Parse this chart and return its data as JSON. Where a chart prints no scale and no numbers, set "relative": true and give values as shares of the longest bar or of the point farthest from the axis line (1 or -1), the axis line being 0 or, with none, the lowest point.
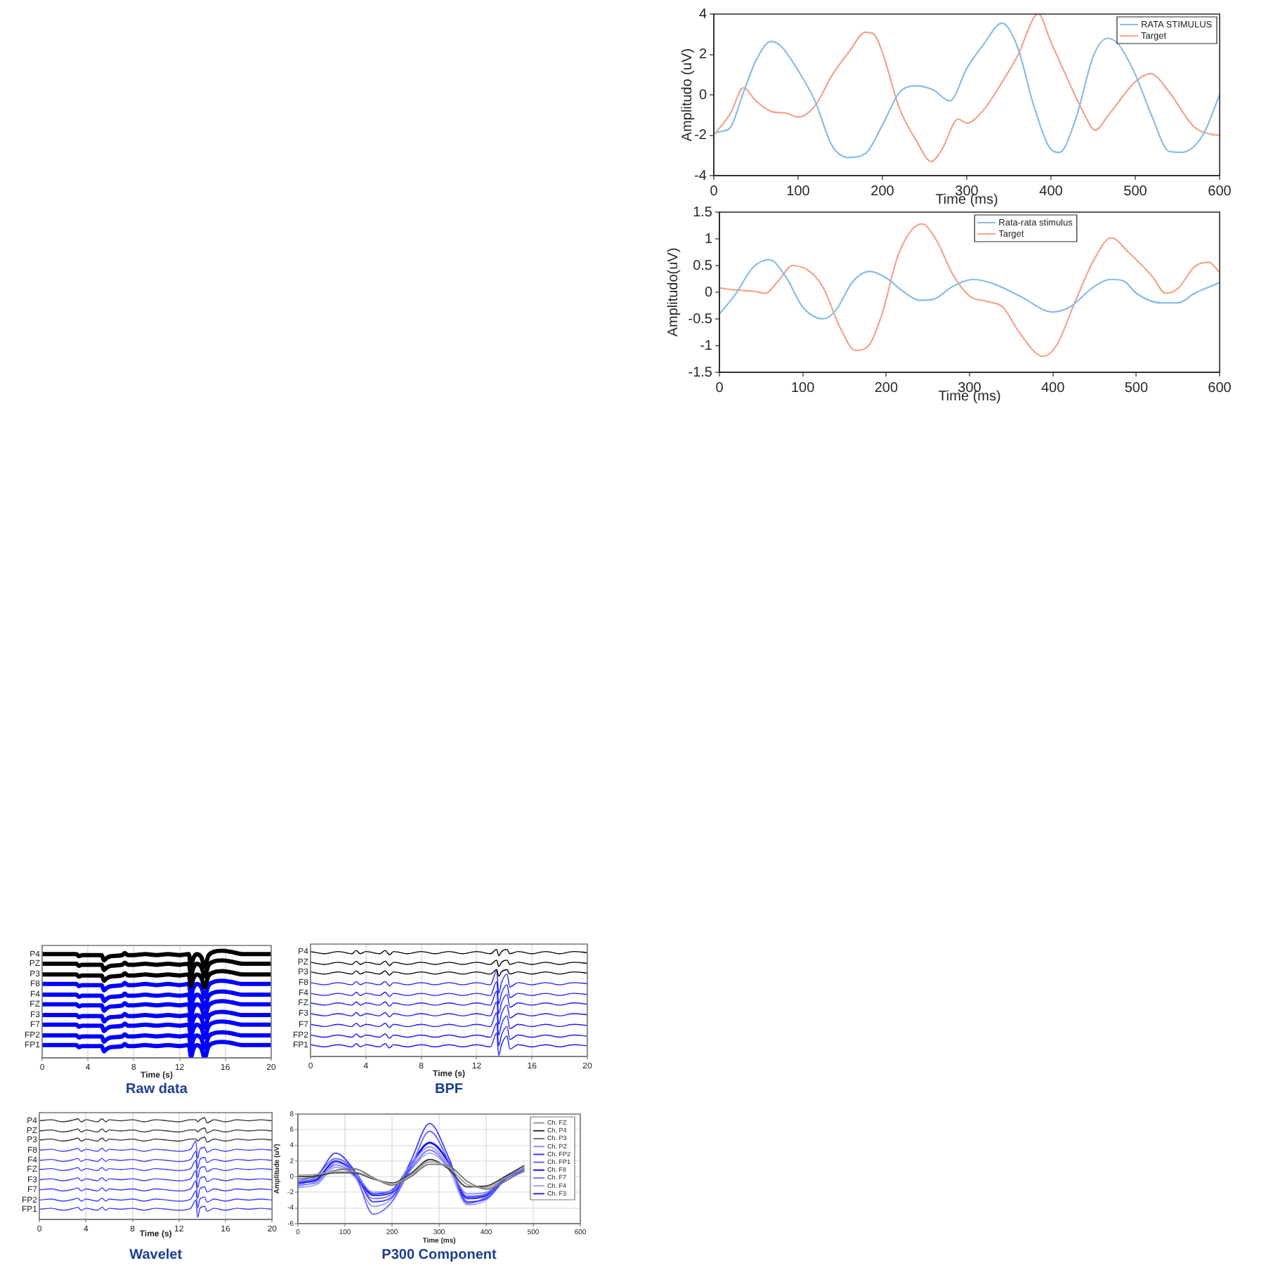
{
  "chart_data": [
    {
      "type": "line",
      "xlabel": "Time (ms)",
      "ylabel": "Amplitudo (uV)",
      "xlim": [
        0,
        600
      ],
      "xticks": [
        0,
        100,
        200,
        300,
        400,
        500,
        600
      ],
      "ylim": [
        -4,
        4
      ],
      "yticks": [
        -4,
        -2,
        0,
        2,
        4
      ],
      "legend": "top right",
      "series": [
        {
          "name": "RATA STIMULUS",
          "color": "#86bde8",
          "x": [
            0,
            10,
            20,
            35,
            50,
            68,
            80,
            100,
            120,
            140,
            160,
            180,
            200,
            220,
            240,
            260,
            280,
            300,
            320,
            342,
            360,
            380,
            400,
            410,
            430,
            450,
            467,
            480,
            500,
            520,
            540,
            555,
            580,
            600
          ],
          "values": [
            -1.9,
            -1.8,
            -1.6,
            0.1,
            1.7,
            2.65,
            2.4,
            1.2,
            -0.3,
            -2.5,
            -3.1,
            -2.9,
            -1.5,
            0.1,
            0.45,
            0.25,
            -0.3,
            1.3,
            2.5,
            3.55,
            2.4,
            -0.6,
            -2.7,
            -2.85,
            -1.1,
            1.9,
            2.8,
            2.5,
            1,
            -1.1,
            -2.8,
            -2.85,
            -2,
            0
          ]
        },
        {
          "name": "Target",
          "color": "#f2a48a",
          "x": [
            0,
            20,
            35,
            50,
            70,
            85,
            100,
            120,
            140,
            160,
            180,
            190,
            200,
            220,
            240,
            258,
            270,
            290,
            300,
            320,
            340,
            360,
            385,
            400,
            420,
            440,
            452,
            470,
            500,
            518,
            540,
            570,
            590,
            600
          ],
          "values": [
            -2,
            -0.9,
            0.35,
            -0.3,
            -0.85,
            -0.9,
            -1.1,
            -0.55,
            0.95,
            2.1,
            3.1,
            3,
            2.1,
            -0.65,
            -2.25,
            -3.3,
            -2.75,
            -1.2,
            -1.4,
            -0.75,
            0.5,
            1.9,
            4,
            2.6,
            0.75,
            -1,
            -1.75,
            -0.9,
            0.65,
            1.05,
            0.15,
            -1.6,
            -1.95,
            -2
          ]
        }
      ]
    },
    {
      "type": "line",
      "xlabel": "Time (ms)",
      "ylabel": "Amplitudo(uV)",
      "xlim": [
        0,
        600
      ],
      "xticks": [
        0,
        100,
        200,
        300,
        400,
        500,
        600
      ],
      "ylim": [
        -1.5,
        1.5
      ],
      "yticks": [
        -1.5,
        -1,
        -0.5,
        0,
        0.5,
        1,
        1.5
      ],
      "legend": "top",
      "series": [
        {
          "name": "Rata-rata stimulus",
          "color": "#86bde8",
          "x": [
            0,
            20,
            40,
            60,
            80,
            100,
            125,
            140,
            160,
            180,
            200,
            220,
            240,
            255,
            280,
            305,
            330,
            360,
            400,
            420,
            450,
            470,
            485,
            500,
            530,
            550,
            570,
            600
          ],
          "values": [
            -0.41,
            -0.02,
            0.46,
            0.61,
            0.28,
            -0.28,
            -0.5,
            -0.33,
            0.2,
            0.39,
            0.27,
            0.02,
            -0.15,
            -0.14,
            0.11,
            0.24,
            0.15,
            -0.07,
            -0.37,
            -0.28,
            0.11,
            0.24,
            0.21,
            -0.02,
            -0.2,
            -0.2,
            -0.02,
            0.18
          ]
        },
        {
          "name": "Target",
          "color": "#f2a48a",
          "x": [
            0,
            20,
            40,
            55,
            70,
            88,
            110,
            125,
            145,
            163,
            180,
            195,
            215,
            243,
            260,
            280,
            300,
            320,
            340,
            360,
            388,
            405,
            425,
            450,
            470,
            490,
            520,
            535,
            550,
            570,
            587,
            600
          ],
          "values": [
            0.08,
            0.04,
            0.02,
            -0.02,
            0.2,
            0.5,
            0.37,
            0.07,
            -0.67,
            -1.09,
            -0.98,
            -0.41,
            0.72,
            1.28,
            0.98,
            0.33,
            -0.07,
            -0.17,
            -0.28,
            -0.76,
            -1.2,
            -0.98,
            -0.24,
            0.63,
            1.02,
            0.76,
            0.28,
            -0.02,
            0.07,
            0.48,
            0.56,
            0.37
          ]
        }
      ]
    },
    {
      "type": "line",
      "title": "Raw data",
      "xlabel": "Time (s)",
      "xlim": [
        0,
        20
      ],
      "xticks": [
        0,
        4,
        8,
        12,
        16,
        20
      ],
      "relative": true,
      "grid": "x",
      "x": [
        0,
        1,
        2,
        3,
        3.2,
        3.5,
        4.5,
        5.2,
        5.4,
        5.6,
        6,
        7,
        7.2,
        7.5,
        8,
        9,
        10,
        11,
        12,
        12.8,
        13,
        13.2,
        13.5,
        13.9,
        14.2,
        14.5,
        15,
        15.7,
        16.5,
        17.5,
        18.5,
        19.5,
        20
      ],
      "series": [
        {
          "name": "P4",
          "color": "#000000",
          "values": [
            0.97,
            0.97,
            0.97,
            0.97,
            0.95,
            0.96,
            0.96,
            0.96,
            0.91,
            0.93,
            0.95,
            0.96,
            0.98,
            0.96,
            0.96,
            0.97,
            0.96,
            0.97,
            0.96,
            0.97,
            0.86,
            0.93,
            0.97,
            0.94,
            0.85,
            0.95,
            0.99,
            1,
            0.99,
            0.97,
            0.97,
            0.97,
            0.97
          ]
        },
        {
          "name": "PZ",
          "color": "#000000",
          "values": [
            0.88,
            0.88,
            0.88,
            0.88,
            0.86,
            0.87,
            0.87,
            0.87,
            0.82,
            0.84,
            0.86,
            0.87,
            0.89,
            0.87,
            0.87,
            0.88,
            0.87,
            0.88,
            0.87,
            0.88,
            0.77,
            0.84,
            0.88,
            0.85,
            0.76,
            0.86,
            0.9,
            0.91,
            0.9,
            0.88,
            0.88,
            0.88,
            0.88
          ]
        },
        {
          "name": "P3",
          "color": "#000000",
          "values": [
            0.78,
            0.78,
            0.78,
            0.78,
            0.76,
            0.77,
            0.77,
            0.77,
            0.72,
            0.74,
            0.76,
            0.77,
            0.79,
            0.77,
            0.77,
            0.78,
            0.77,
            0.78,
            0.77,
            0.78,
            0.67,
            0.74,
            0.78,
            0.75,
            0.66,
            0.76,
            0.8,
            0.81,
            0.8,
            0.78,
            0.78,
            0.78,
            0.78
          ]
        },
        {
          "name": "F8",
          "color": "#0000ff",
          "values": [
            0.69,
            0.69,
            0.69,
            0.69,
            0.67,
            0.68,
            0.68,
            0.68,
            0.63,
            0.65,
            0.67,
            0.68,
            0.7,
            0.68,
            0.68,
            0.69,
            0.68,
            0.69,
            0.68,
            0.69,
            0.58,
            0.65,
            0.69,
            0.66,
            0.57,
            0.67,
            0.71,
            0.72,
            0.71,
            0.69,
            0.69,
            0.69,
            0.69
          ]
        },
        {
          "name": "F4",
          "color": "#0000ff",
          "values": [
            0.59,
            0.59,
            0.59,
            0.59,
            0.57,
            0.58,
            0.58,
            0.58,
            0.53,
            0.55,
            0.57,
            0.58,
            0.6,
            0.58,
            0.58,
            0.59,
            0.58,
            0.59,
            0.58,
            0.59,
            0.48,
            0.55,
            0.59,
            0.56,
            0.47,
            0.57,
            0.61,
            0.62,
            0.61,
            0.59,
            0.59,
            0.59,
            0.59
          ]
        },
        {
          "name": "FZ",
          "color": "#0000ff",
          "values": [
            0.5,
            0.5,
            0.5,
            0.5,
            0.48,
            0.49,
            0.49,
            0.49,
            0.44,
            0.46,
            0.48,
            0.49,
            0.51,
            0.49,
            0.49,
            0.5,
            0.49,
            0.5,
            0.49,
            0.5,
            0.39,
            0.46,
            0.5,
            0.47,
            0.38,
            0.48,
            0.52,
            0.53,
            0.52,
            0.5,
            0.5,
            0.5,
            0.5
          ]
        },
        {
          "name": "F3",
          "color": "#0000ff",
          "values": [
            0.4,
            0.4,
            0.4,
            0.4,
            0.38,
            0.39,
            0.39,
            0.39,
            0.34,
            0.36,
            0.38,
            0.39,
            0.41,
            0.39,
            0.39,
            0.4,
            0.39,
            0.4,
            0.39,
            0.4,
            0.29,
            0.36,
            0.4,
            0.37,
            0.28,
            0.38,
            0.42,
            0.43,
            0.42,
            0.4,
            0.4,
            0.4,
            0.4
          ]
        },
        {
          "name": "F7",
          "color": "#0000ff",
          "values": [
            0.31,
            0.31,
            0.31,
            0.31,
            0.29,
            0.3,
            0.3,
            0.3,
            0.25,
            0.27,
            0.29,
            0.3,
            0.32,
            0.3,
            0.3,
            0.31,
            0.3,
            0.31,
            0.3,
            0.31,
            0.2,
            0.27,
            0.31,
            0.28,
            0.19,
            0.29,
            0.33,
            0.34,
            0.33,
            0.31,
            0.31,
            0.31,
            0.31
          ]
        },
        {
          "name": "FP2",
          "color": "#0000ff",
          "values": [
            0.21,
            0.21,
            0.21,
            0.21,
            0.19,
            0.2,
            0.2,
            0.2,
            0.15,
            0.17,
            0.19,
            0.2,
            0.22,
            0.2,
            0.2,
            0.21,
            0.2,
            0.21,
            0.2,
            0.21,
            0.1,
            0.17,
            0.21,
            0.18,
            0.09,
            0.19,
            0.23,
            0.24,
            0.23,
            0.21,
            0.21,
            0.21,
            0.21
          ]
        },
        {
          "name": "FP1",
          "color": "#0000ff",
          "values": [
            0.12,
            0.12,
            0.12,
            0.12,
            0.1,
            0.11,
            0.11,
            0.11,
            0.06,
            0.08,
            0.1,
            0.11,
            0.13,
            0.11,
            0.11,
            0.12,
            0.11,
            0.12,
            0.11,
            0.12,
            0.01,
            0.08,
            0.12,
            0.09,
            0,
            0.1,
            0.14,
            0.15,
            0.14,
            0.12,
            0.12,
            0.12,
            0.12
          ]
        }
      ]
    },
    {
      "type": "line",
      "title": "BPF",
      "xlabel": "Time (s)",
      "xlim": [
        0,
        20
      ],
      "xticks": [
        0,
        4,
        8,
        12,
        16,
        20
      ],
      "relative": true,
      "grid": "x",
      "x": [
        0,
        1,
        2,
        3,
        3.3,
        3.6,
        4,
        5,
        5.4,
        5.7,
        6,
        7,
        8,
        9,
        10,
        11,
        12,
        13,
        13.45,
        13.6,
        13.8,
        14.2,
        14.4,
        15,
        16,
        17,
        18,
        19,
        20
      ],
      "series": [
        {
          "name": "P4",
          "color": "#000000",
          "values": [
            0.98,
            0.96,
            0.98,
            0.96,
            0.99,
            0.96,
            0.98,
            0.96,
            0.99,
            0.95,
            0.98,
            0.96,
            0.98,
            0.96,
            0.98,
            0.96,
            0.98,
            0.96,
            1,
            0.94,
            0.98,
            1,
            0.96,
            0.98,
            0.96,
            0.98,
            0.96,
            0.98,
            0.97
          ]
        },
        {
          "name": "PZ",
          "color": "#000000",
          "values": [
            0.88,
            0.86,
            0.88,
            0.86,
            0.89,
            0.86,
            0.88,
            0.86,
            0.89,
            0.85,
            0.88,
            0.86,
            0.88,
            0.86,
            0.88,
            0.86,
            0.88,
            0.86,
            0.9,
            0.84,
            0.88,
            0.9,
            0.86,
            0.88,
            0.86,
            0.88,
            0.86,
            0.88,
            0.87
          ]
        },
        {
          "name": "P3",
          "color": "#000000",
          "values": [
            0.79,
            0.77,
            0.79,
            0.77,
            0.8,
            0.77,
            0.79,
            0.77,
            0.8,
            0.76,
            0.79,
            0.77,
            0.79,
            0.77,
            0.79,
            0.77,
            0.79,
            0.77,
            0.81,
            0.75,
            0.79,
            0.81,
            0.77,
            0.79,
            0.77,
            0.79,
            0.77,
            0.79,
            0.78
          ]
        },
        {
          "name": "F8",
          "color": "#1f1fff",
          "values": [
            0.69,
            0.67,
            0.69,
            0.67,
            0.7,
            0.67,
            0.69,
            0.67,
            0.7,
            0.66,
            0.69,
            0.67,
            0.69,
            0.67,
            0.69,
            0.67,
            0.69,
            0.67,
            0.8,
            0.59,
            0.69,
            0.77,
            0.65,
            0.69,
            0.67,
            0.69,
            0.67,
            0.69,
            0.68
          ]
        },
        {
          "name": "F4",
          "color": "#1f1fff",
          "values": [
            0.59,
            0.57,
            0.59,
            0.57,
            0.6,
            0.57,
            0.59,
            0.57,
            0.6,
            0.56,
            0.59,
            0.57,
            0.59,
            0.57,
            0.59,
            0.57,
            0.59,
            0.57,
            0.7,
            0.49,
            0.59,
            0.67,
            0.55,
            0.59,
            0.57,
            0.59,
            0.57,
            0.59,
            0.58
          ]
        },
        {
          "name": "FZ",
          "color": "#1f1fff",
          "values": [
            0.5,
            0.48,
            0.5,
            0.48,
            0.51,
            0.48,
            0.5,
            0.48,
            0.51,
            0.47,
            0.5,
            0.48,
            0.5,
            0.48,
            0.5,
            0.48,
            0.5,
            0.48,
            0.61,
            0.4,
            0.5,
            0.58,
            0.46,
            0.5,
            0.48,
            0.5,
            0.48,
            0.5,
            0.49
          ]
        },
        {
          "name": "F3",
          "color": "#1f1fff",
          "values": [
            0.4,
            0.38,
            0.4,
            0.38,
            0.41,
            0.38,
            0.4,
            0.38,
            0.41,
            0.37,
            0.4,
            0.38,
            0.4,
            0.38,
            0.4,
            0.38,
            0.4,
            0.38,
            0.51,
            0.3,
            0.4,
            0.48,
            0.36,
            0.4,
            0.38,
            0.4,
            0.38,
            0.4,
            0.39
          ]
        },
        {
          "name": "F7",
          "color": "#1f1fff",
          "values": [
            0.3,
            0.28,
            0.3,
            0.28,
            0.31,
            0.28,
            0.3,
            0.28,
            0.31,
            0.27,
            0.3,
            0.28,
            0.3,
            0.28,
            0.3,
            0.28,
            0.3,
            0.28,
            0.41,
            0.2,
            0.3,
            0.38,
            0.26,
            0.3,
            0.28,
            0.3,
            0.28,
            0.3,
            0.29
          ]
        },
        {
          "name": "FP2",
          "color": "#1f1fff",
          "values": [
            0.2,
            0.18,
            0.2,
            0.18,
            0.21,
            0.18,
            0.2,
            0.18,
            0.21,
            0.17,
            0.2,
            0.18,
            0.2,
            0.18,
            0.2,
            0.18,
            0.2,
            0.18,
            0.31,
            0.1,
            0.2,
            0.28,
            0.16,
            0.2,
            0.18,
            0.2,
            0.18,
            0.2,
            0.19
          ]
        },
        {
          "name": "FP1",
          "color": "#1f1fff",
          "values": [
            0.11,
            0.09,
            0.11,
            0.09,
            0.12,
            0.09,
            0.11,
            0.09,
            0.12,
            0.08,
            0.11,
            0.09,
            0.11,
            0.09,
            0.11,
            0.09,
            0.11,
            0.09,
            0.22,
            0.01,
            0.11,
            0.19,
            0.07,
            0.11,
            0.09,
            0.11,
            0.09,
            0.11,
            0.1
          ]
        }
      ]
    },
    {
      "type": "line",
      "title": "Wavelet",
      "xlabel": "Time (s)",
      "xlim": [
        0,
        20
      ],
      "xticks": [
        0,
        4,
        8,
        12,
        16,
        20
      ],
      "relative": true,
      "grid": "x",
      "x": [
        0,
        1,
        2,
        3,
        3.3,
        3.6,
        4,
        5,
        5.4,
        5.7,
        6,
        7,
        8,
        9,
        10,
        11,
        12,
        13,
        13.45,
        13.6,
        13.8,
        14.2,
        14.4,
        15,
        16,
        17,
        18,
        19,
        20
      ],
      "series": [
        {
          "name": "P4",
          "color": "#333333",
          "values": [
            0.97,
            0.98,
            0.96,
            0.98,
            0.99,
            0.96,
            0.98,
            0.96,
            0.99,
            0.96,
            0.98,
            0.97,
            0.98,
            0.96,
            0.98,
            0.97,
            0.96,
            0.98,
            0.98,
            0.96,
            0.98,
            1,
            0.95,
            0.98,
            0.96,
            0.98,
            0.97,
            0.98,
            0.97
          ]
        },
        {
          "name": "PZ",
          "color": "#333333",
          "values": [
            0.87,
            0.88,
            0.86,
            0.88,
            0.89,
            0.86,
            0.88,
            0.86,
            0.89,
            0.86,
            0.88,
            0.87,
            0.88,
            0.86,
            0.88,
            0.87,
            0.86,
            0.88,
            0.88,
            0.86,
            0.88,
            0.9,
            0.85,
            0.88,
            0.86,
            0.88,
            0.87,
            0.88,
            0.87
          ]
        },
        {
          "name": "P3",
          "color": "#333333",
          "values": [
            0.78,
            0.79,
            0.77,
            0.79,
            0.8,
            0.77,
            0.79,
            0.77,
            0.8,
            0.77,
            0.79,
            0.78,
            0.79,
            0.77,
            0.79,
            0.78,
            0.77,
            0.79,
            0.79,
            0.77,
            0.79,
            0.81,
            0.76,
            0.79,
            0.77,
            0.79,
            0.78,
            0.79,
            0.78
          ]
        },
        {
          "name": "F8",
          "color": "#4040ff",
          "values": [
            0.68,
            0.69,
            0.67,
            0.69,
            0.7,
            0.67,
            0.69,
            0.67,
            0.7,
            0.67,
            0.69,
            0.68,
            0.69,
            0.67,
            0.69,
            0.68,
            0.67,
            0.69,
            0.77,
            0.6,
            0.69,
            0.71,
            0.66,
            0.69,
            0.67,
            0.69,
            0.68,
            0.69,
            0.68
          ]
        },
        {
          "name": "F4",
          "color": "#4040ff",
          "values": [
            0.58,
            0.59,
            0.57,
            0.59,
            0.6,
            0.57,
            0.59,
            0.57,
            0.6,
            0.57,
            0.59,
            0.58,
            0.59,
            0.57,
            0.59,
            0.58,
            0.57,
            0.59,
            0.67,
            0.5,
            0.59,
            0.61,
            0.56,
            0.59,
            0.57,
            0.59,
            0.58,
            0.59,
            0.58
          ]
        },
        {
          "name": "FZ",
          "color": "#4040ff",
          "values": [
            0.49,
            0.5,
            0.48,
            0.5,
            0.51,
            0.48,
            0.5,
            0.48,
            0.51,
            0.48,
            0.5,
            0.49,
            0.5,
            0.48,
            0.5,
            0.49,
            0.48,
            0.5,
            0.58,
            0.41,
            0.5,
            0.52,
            0.47,
            0.5,
            0.48,
            0.5,
            0.49,
            0.5,
            0.49
          ]
        },
        {
          "name": "F3",
          "color": "#4040ff",
          "values": [
            0.39,
            0.4,
            0.38,
            0.4,
            0.41,
            0.38,
            0.4,
            0.38,
            0.41,
            0.38,
            0.4,
            0.39,
            0.4,
            0.38,
            0.4,
            0.39,
            0.38,
            0.4,
            0.48,
            0.31,
            0.4,
            0.42,
            0.37,
            0.4,
            0.38,
            0.4,
            0.39,
            0.4,
            0.39
          ]
        },
        {
          "name": "F7",
          "color": "#4040ff",
          "values": [
            0.29,
            0.3,
            0.28,
            0.3,
            0.31,
            0.28,
            0.3,
            0.28,
            0.31,
            0.28,
            0.3,
            0.29,
            0.3,
            0.28,
            0.3,
            0.29,
            0.28,
            0.3,
            0.38,
            0.21,
            0.3,
            0.32,
            0.27,
            0.3,
            0.28,
            0.3,
            0.29,
            0.3,
            0.29
          ]
        },
        {
          "name": "FP2",
          "color": "#4040ff",
          "values": [
            0.19,
            0.2,
            0.18,
            0.2,
            0.21,
            0.18,
            0.2,
            0.18,
            0.21,
            0.18,
            0.2,
            0.19,
            0.2,
            0.18,
            0.2,
            0.19,
            0.18,
            0.2,
            0.28,
            0.11,
            0.2,
            0.22,
            0.17,
            0.2,
            0.18,
            0.2,
            0.19,
            0.2,
            0.19
          ]
        },
        {
          "name": "FP1",
          "color": "#4040ff",
          "values": [
            0.1,
            0.11,
            0.09,
            0.11,
            0.12,
            0.09,
            0.11,
            0.09,
            0.12,
            0.09,
            0.11,
            0.1,
            0.11,
            0.09,
            0.11,
            0.1,
            0.09,
            0.11,
            0.19,
            0.02,
            0.11,
            0.13,
            0.08,
            0.11,
            0.09,
            0.11,
            0.1,
            0.11,
            0.1
          ]
        }
      ]
    },
    {
      "type": "line",
      "title": "P300 Component",
      "xlabel": "Time (ms)",
      "ylabel": "Amplitude (uV)",
      "xlim": [
        0,
        600
      ],
      "xticks": [
        0,
        100,
        200,
        300,
        400,
        500,
        600
      ],
      "ylim": [
        -6,
        8
      ],
      "yticks": [
        -6,
        -4,
        -2,
        0,
        2,
        4,
        6,
        8
      ],
      "grid": true,
      "legend": "top right",
      "x": [
        0,
        40,
        80,
        120,
        160,
        200,
        240,
        280,
        320,
        360,
        400,
        440,
        480
      ],
      "series": [
        {
          "name": "Ch. FZ",
          "color": "#9a9a9a",
          "values": [
            0.2,
            0.3,
            0.6,
            0.6,
            -0.2,
            -0.9,
            0.2,
            1.9,
            1.2,
            -1,
            -1.4,
            -0.2,
            1.2
          ]
        },
        {
          "name": "Ch. P4",
          "color": "#333333",
          "values": [
            0,
            0.1,
            0.5,
            0.5,
            -0.3,
            -0.8,
            0.4,
            2.2,
            1,
            -1.3,
            -1.2,
            0,
            1.4
          ]
        },
        {
          "name": "Ch. P3",
          "color": "#777777",
          "values": [
            -0.3,
            0,
            0.8,
            1,
            -0.1,
            -1.1,
            0,
            1.6,
            1.4,
            -0.6,
            -1.6,
            -0.6,
            0.8
          ]
        },
        {
          "name": "Ch. PZ",
          "color": "#8c8cff",
          "values": [
            -1,
            -0.8,
            1.8,
            0.5,
            -2,
            -1.8,
            1.5,
            3.8,
            1.5,
            -2.2,
            -2,
            0,
            1
          ]
        },
        {
          "name": "Ch. FP2",
          "color": "#3c3cff",
          "values": [
            -0.8,
            0,
            3,
            0.8,
            -3.2,
            -2.6,
            2,
            6.8,
            2.5,
            -3.2,
            -2.8,
            -0.3,
            1
          ]
        },
        {
          "name": "Ch. FP1",
          "color": "#6464ff",
          "values": [
            -0.6,
            0.2,
            2.3,
            0.6,
            -4.8,
            -3.2,
            1.2,
            5.8,
            2,
            -3.4,
            -2.6,
            -0.2,
            0.8
          ]
        },
        {
          "name": "Ch. F8",
          "color": "#1414ff",
          "values": [
            -0.8,
            -0.4,
            2,
            0.3,
            -2.4,
            -2,
            1.3,
            4.3,
            1.8,
            -2.8,
            -2.4,
            -0.2,
            0.9
          ]
        },
        {
          "name": "Ch. F7",
          "color": "#7878ff",
          "values": [
            -1.2,
            -0.6,
            1.5,
            0.2,
            -2.8,
            -2.2,
            1,
            3.4,
            1.2,
            -2.5,
            -2.2,
            -0.3,
            0.7
          ]
        },
        {
          "name": "Ch. F4",
          "color": "#a0a0ff",
          "values": [
            -1.4,
            -1,
            1.2,
            0,
            -3.8,
            -2.8,
            0.8,
            3,
            1,
            -3.6,
            -3,
            -0.5,
            0.6
          ]
        },
        {
          "name": "Ch. F3",
          "color": "#2828f0",
          "values": [
            -0.9,
            -0.3,
            2,
            0.7,
            -2.2,
            -1.7,
            1.6,
            4.4,
            2,
            -2.6,
            -2.2,
            0,
            1.1
          ]
        }
      ]
    }
  ]
}
